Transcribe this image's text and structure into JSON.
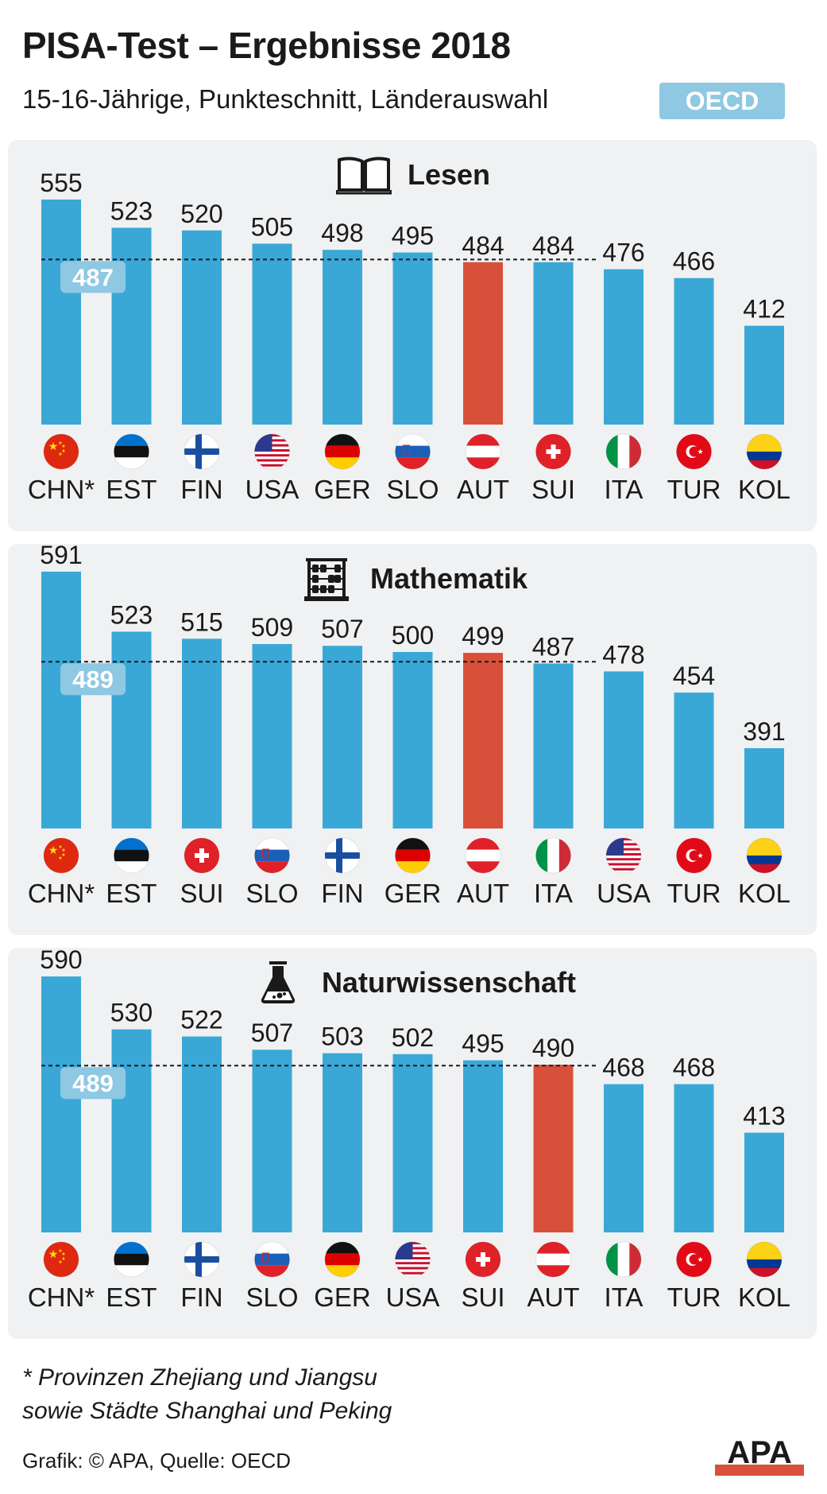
{
  "header": {
    "title": "PISA-Test – Ergebnisse 2018",
    "subtitle": "15-16-Jährige, Punkteschnitt, Länderauswahl",
    "badge": "OECD"
  },
  "colors": {
    "bar": "#3aa8d6",
    "highlight": "#d9503a",
    "average_box": "#8ec8e2"
  },
  "chart_data": [
    {
      "type": "bar",
      "title": "Lesen",
      "icon": "book-icon",
      "categories": [
        "CHN*",
        "EST",
        "FIN",
        "USA",
        "GER",
        "SLO",
        "AUT",
        "SUI",
        "ITA",
        "TUR",
        "KOL"
      ],
      "values": [
        555,
        523,
        520,
        505,
        498,
        495,
        484,
        484,
        476,
        466,
        412
      ],
      "highlight": "AUT",
      "average": 487,
      "average_label": "487"
    },
    {
      "type": "bar",
      "title": "Mathematik",
      "icon": "abacus-icon",
      "categories": [
        "CHN*",
        "EST",
        "SUI",
        "SLO",
        "FIN",
        "GER",
        "AUT",
        "ITA",
        "USA",
        "TUR",
        "KOL"
      ],
      "values": [
        591,
        523,
        515,
        509,
        507,
        500,
        499,
        487,
        478,
        454,
        391
      ],
      "highlight": "AUT",
      "average": 489,
      "average_label": "489"
    },
    {
      "type": "bar",
      "title": "Naturwissenschaft",
      "icon": "flask-icon",
      "categories": [
        "CHN*",
        "EST",
        "FIN",
        "SLO",
        "GER",
        "USA",
        "SUI",
        "AUT",
        "ITA",
        "TUR",
        "KOL"
      ],
      "values": [
        590,
        530,
        522,
        507,
        503,
        502,
        495,
        490,
        468,
        468,
        413
      ],
      "highlight": "AUT",
      "average": 489,
      "average_label": "489"
    }
  ],
  "footer": {
    "footnote_line1": "* Provinzen Zhejiang und Jiangsu",
    "footnote_line2": "sowie Städte Shanghai und Peking",
    "source": "Grafik: © APA, Quelle: OECD",
    "logo_text": "APA"
  }
}
